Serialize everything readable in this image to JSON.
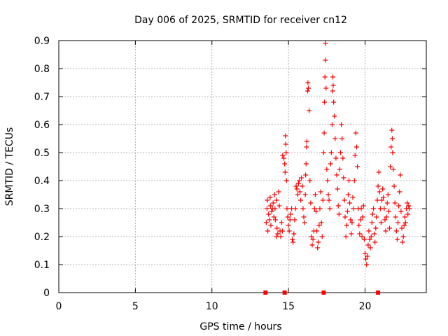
{
  "chart_data": {
    "type": "scatter",
    "title": "Day 006 of 2025, SRMTID for receiver cn12",
    "xlabel": "GPS time / hours",
    "ylabel": "SRMTID / TECUs",
    "xlim": [
      0,
      24
    ],
    "ylim": [
      0,
      0.9
    ],
    "x_ticks": [
      0,
      5,
      10,
      15,
      20
    ],
    "x_tick_labels": [
      "0",
      "5",
      "10",
      "15",
      "20"
    ],
    "y_ticks": [
      0,
      0.1,
      0.2,
      0.3,
      0.4,
      0.5,
      0.6,
      0.7,
      0.8,
      0.9
    ],
    "y_tick_labels": [
      "0",
      "0.1",
      "0.2",
      "0.3",
      "0.4",
      "0.5",
      "0.6",
      "0.7",
      "0.8",
      "0.9"
    ],
    "grid": true,
    "marker": "+",
    "color": "#ff0000",
    "x_data_range": [
      13.5,
      22.9
    ],
    "zero_markers": [
      13.5,
      14.75,
      17.3,
      20.85
    ],
    "series": [
      {
        "name": "SRMTID",
        "points": [
          [
            13.55,
            0.25
          ],
          [
            13.6,
            0.3
          ],
          [
            13.62,
            0.33
          ],
          [
            13.65,
            0.22
          ],
          [
            13.7,
            0.28
          ],
          [
            13.75,
            0.26
          ],
          [
            13.8,
            0.34
          ],
          [
            13.82,
            0.31
          ],
          [
            13.85,
            0.24
          ],
          [
            13.9,
            0.29
          ],
          [
            13.95,
            0.3
          ],
          [
            14.0,
            0.32
          ],
          [
            14.05,
            0.27
          ],
          [
            14.1,
            0.35
          ],
          [
            14.12,
            0.3
          ],
          [
            14.15,
            0.26
          ],
          [
            14.2,
            0.2
          ],
          [
            14.22,
            0.33
          ],
          [
            14.25,
            0.23
          ],
          [
            14.3,
            0.21
          ],
          [
            14.35,
            0.36
          ],
          [
            14.4,
            0.31
          ],
          [
            14.45,
            0.22
          ],
          [
            14.5,
            0.2
          ],
          [
            14.55,
            0.25
          ],
          [
            14.6,
            0.22
          ],
          [
            14.62,
            0.49
          ],
          [
            14.7,
            0.48
          ],
          [
            14.75,
            0.46
          ],
          [
            14.78,
            0.43
          ],
          [
            14.8,
            0.56
          ],
          [
            14.82,
            0.53
          ],
          [
            14.85,
            0.5
          ],
          [
            14.87,
            0.4
          ],
          [
            14.9,
            0.3
          ],
          [
            14.95,
            0.27
          ],
          [
            15.0,
            0.24
          ],
          [
            15.05,
            0.22
          ],
          [
            15.1,
            0.26
          ],
          [
            15.15,
            0.28
          ],
          [
            15.2,
            0.3
          ],
          [
            15.25,
            0.19
          ],
          [
            15.3,
            0.18
          ],
          [
            15.35,
            0.21
          ],
          [
            15.4,
            0.26
          ],
          [
            15.45,
            0.3
          ],
          [
            15.5,
            0.38
          ],
          [
            15.55,
            0.37
          ],
          [
            15.6,
            0.35
          ],
          [
            15.65,
            0.39
          ],
          [
            15.7,
            0.4
          ],
          [
            15.75,
            0.36
          ],
          [
            15.8,
            0.33
          ],
          [
            15.85,
            0.41
          ],
          [
            15.9,
            0.38
          ],
          [
            15.95,
            0.3
          ],
          [
            16.0,
            0.27
          ],
          [
            16.05,
            0.25
          ],
          [
            16.1,
            0.35
          ],
          [
            16.12,
            0.42
          ],
          [
            16.15,
            0.46
          ],
          [
            16.18,
            0.52
          ],
          [
            16.2,
            0.54
          ],
          [
            16.25,
            0.72
          ],
          [
            16.27,
            0.75
          ],
          [
            16.3,
            0.73
          ],
          [
            16.35,
            0.65
          ],
          [
            16.4,
            0.4
          ],
          [
            16.45,
            0.32
          ],
          [
            16.5,
            0.2
          ],
          [
            16.55,
            0.17
          ],
          [
            16.6,
            0.19
          ],
          [
            16.65,
            0.22
          ],
          [
            16.7,
            0.3
          ],
          [
            16.75,
            0.35
          ],
          [
            16.8,
            0.29
          ],
          [
            16.85,
            0.22
          ],
          [
            16.9,
            0.16
          ],
          [
            16.95,
            0.18
          ],
          [
            17.0,
            0.24
          ],
          [
            17.05,
            0.3
          ],
          [
            17.1,
            0.36
          ],
          [
            17.15,
            0.25
          ],
          [
            17.2,
            0.2
          ],
          [
            17.25,
            0.33
          ],
          [
            17.3,
            0.5
          ],
          [
            17.33,
            0.57
          ],
          [
            17.35,
            0.68
          ],
          [
            17.38,
            0.77
          ],
          [
            17.4,
            0.83
          ],
          [
            17.42,
            0.89
          ],
          [
            17.45,
            0.73
          ],
          [
            17.5,
            0.44
          ],
          [
            17.55,
            0.4
          ],
          [
            17.6,
            0.35
          ],
          [
            17.65,
            0.33
          ],
          [
            17.7,
            0.3
          ],
          [
            17.75,
            0.46
          ],
          [
            17.8,
            0.5
          ],
          [
            17.85,
            0.6
          ],
          [
            17.88,
            0.72
          ],
          [
            17.9,
            0.77
          ],
          [
            17.92,
            0.74
          ],
          [
            17.95,
            0.68
          ],
          [
            18.0,
            0.63
          ],
          [
            18.05,
            0.55
          ],
          [
            18.1,
            0.48
          ],
          [
            18.15,
            0.42
          ],
          [
            18.2,
            0.37
          ],
          [
            18.25,
            0.31
          ],
          [
            18.3,
            0.28
          ],
          [
            18.35,
            0.44
          ],
          [
            18.4,
            0.5
          ],
          [
            18.45,
            0.6
          ],
          [
            18.5,
            0.55
          ],
          [
            18.55,
            0.48
          ],
          [
            18.6,
            0.41
          ],
          [
            18.65,
            0.33
          ],
          [
            18.7,
            0.27
          ],
          [
            18.75,
            0.2
          ],
          [
            18.8,
            0.24
          ],
          [
            18.85,
            0.29
          ],
          [
            18.9,
            0.35
          ],
          [
            18.95,
            0.4
          ],
          [
            19.0,
            0.32
          ],
          [
            19.05,
            0.26
          ],
          [
            19.1,
            0.21
          ],
          [
            19.15,
            0.25
          ],
          [
            19.2,
            0.34
          ],
          [
            19.25,
            0.3
          ],
          [
            19.3,
            0.4
          ],
          [
            19.35,
            0.49
          ],
          [
            19.4,
            0.57
          ],
          [
            19.45,
            0.52
          ],
          [
            19.5,
            0.45
          ],
          [
            19.55,
            0.3
          ],
          [
            19.6,
            0.24
          ],
          [
            19.65,
            0.21
          ],
          [
            19.7,
            0.26
          ],
          [
            19.75,
            0.3
          ],
          [
            19.8,
            0.2
          ],
          [
            19.85,
            0.27
          ],
          [
            19.9,
            0.31
          ],
          [
            19.95,
            0.19
          ],
          [
            20.0,
            0.14
          ],
          [
            20.05,
            0.12
          ],
          [
            20.1,
            0.1
          ],
          [
            20.15,
            0.13
          ],
          [
            20.2,
            0.17
          ],
          [
            20.25,
            0.22
          ],
          [
            20.3,
            0.19
          ],
          [
            20.35,
            0.16
          ],
          [
            20.4,
            0.2
          ],
          [
            20.45,
            0.25
          ],
          [
            20.5,
            0.28
          ],
          [
            20.55,
            0.3
          ],
          [
            20.6,
            0.21
          ],
          [
            20.65,
            0.18
          ],
          [
            20.7,
            0.23
          ],
          [
            20.75,
            0.27
          ],
          [
            20.8,
            0.33
          ],
          [
            20.85,
            0.38
          ],
          [
            20.9,
            0.43
          ],
          [
            20.95,
            0.36
          ],
          [
            21.0,
            0.3
          ],
          [
            21.05,
            0.25
          ],
          [
            21.1,
            0.33
          ],
          [
            21.15,
            0.37
          ],
          [
            21.2,
            0.34
          ],
          [
            21.25,
            0.3
          ],
          [
            21.3,
            0.26
          ],
          [
            21.35,
            0.22
          ],
          [
            21.4,
            0.27
          ],
          [
            21.45,
            0.32
          ],
          [
            21.5,
            0.35
          ],
          [
            21.55,
            0.29
          ],
          [
            21.6,
            0.23
          ],
          [
            21.65,
            0.45
          ],
          [
            21.7,
            0.52
          ],
          [
            21.75,
            0.58
          ],
          [
            21.78,
            0.55
          ],
          [
            21.8,
            0.5
          ],
          [
            21.85,
            0.44
          ],
          [
            21.9,
            0.38
          ],
          [
            21.95,
            0.32
          ],
          [
            22.0,
            0.27
          ],
          [
            22.05,
            0.22
          ],
          [
            22.1,
            0.19
          ],
          [
            22.15,
            0.25
          ],
          [
            22.2,
            0.31
          ],
          [
            22.25,
            0.36
          ],
          [
            22.3,
            0.42
          ],
          [
            22.35,
            0.29
          ],
          [
            22.4,
            0.23
          ],
          [
            22.45,
            0.18
          ],
          [
            22.5,
            0.2
          ],
          [
            22.55,
            0.24
          ],
          [
            22.6,
            0.27
          ],
          [
            22.65,
            0.25
          ],
          [
            22.7,
            0.3
          ],
          [
            22.75,
            0.32
          ],
          [
            22.8,
            0.28
          ],
          [
            22.85,
            0.31
          ],
          [
            22.9,
            0.3
          ]
        ]
      }
    ]
  }
}
